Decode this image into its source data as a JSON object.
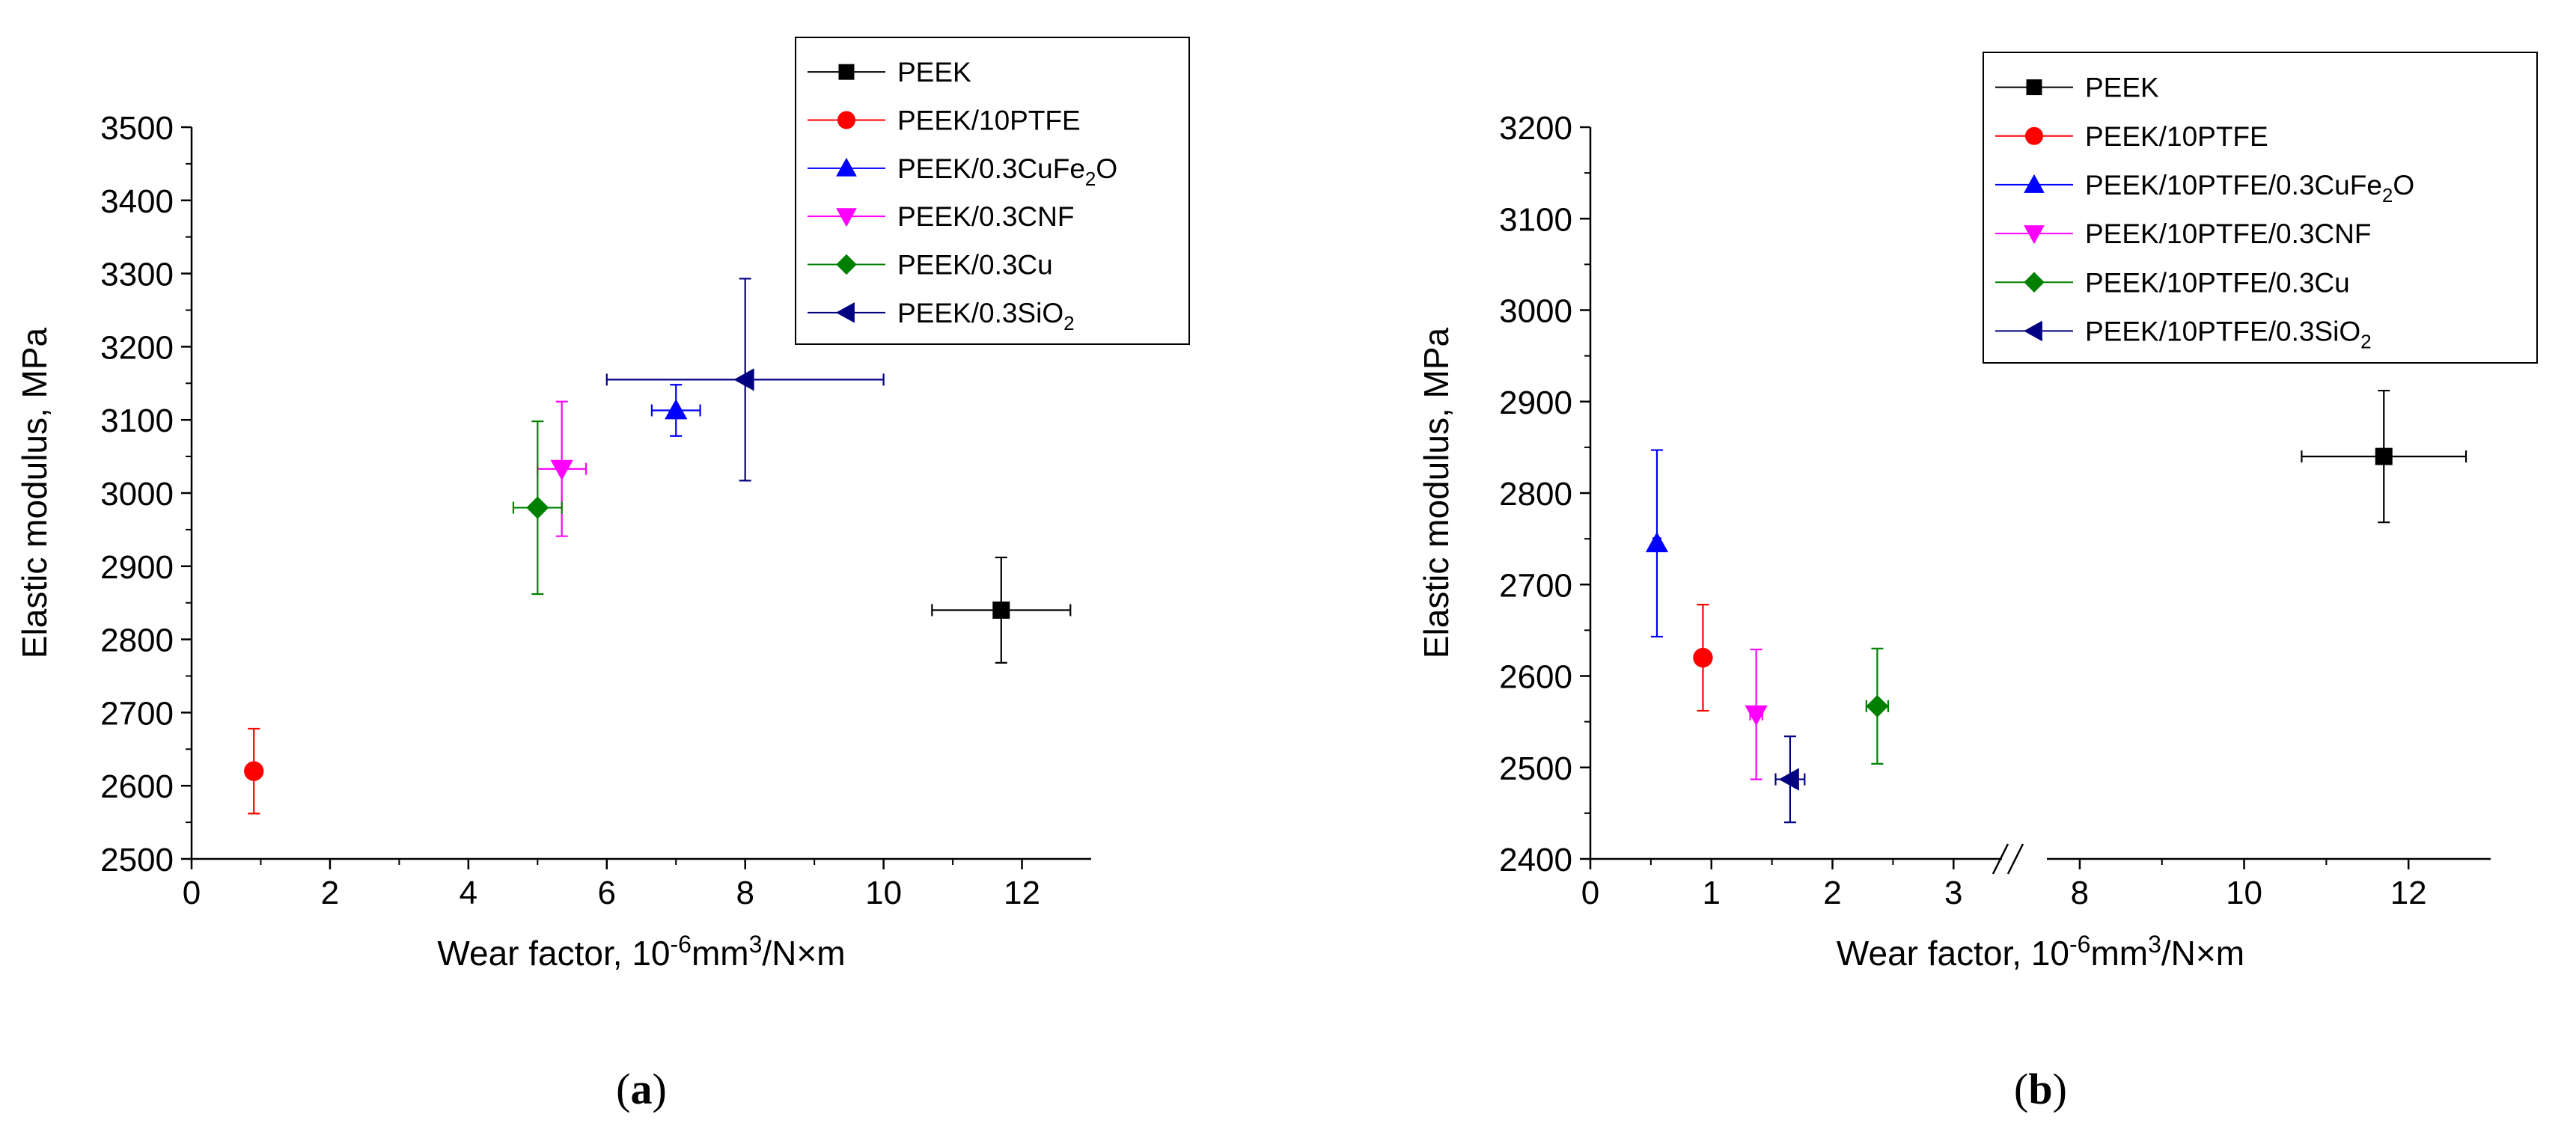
{
  "chart_data": [
    {
      "type": "scatter",
      "panel": "(a)",
      "panel_parts": [
        "(",
        "a",
        ")"
      ],
      "xlabel_parts": [
        "Wear factor, 10",
        "-6",
        "mm",
        "3",
        "/N×m"
      ],
      "ylabel": "Elastic modulus, MPa",
      "xlim": [
        0,
        13
      ],
      "ylim": [
        2500,
        3500
      ],
      "xticks": [
        0,
        2,
        4,
        6,
        8,
        10,
        12
      ],
      "yticks": [
        2500,
        2600,
        2700,
        2800,
        2900,
        3000,
        3100,
        3200,
        3300,
        3400,
        3500
      ],
      "legend_position": "top-right",
      "series": [
        {
          "name": "PEEK",
          "name_parts": [
            "PEEK"
          ],
          "color": "#000000",
          "marker": "square",
          "x": 11.7,
          "y": 2840,
          "xerr": 1.0,
          "yerr": 72
        },
        {
          "name": "PEEK/10PTFE",
          "name_parts": [
            "PEEK/10PTFE"
          ],
          "color": "#ff0000",
          "marker": "circle",
          "x": 0.9,
          "y": 2620,
          "xerr": 0.0,
          "yerr": 58
        },
        {
          "name": "PEEK/0.3CuFe2O",
          "name_parts": [
            "PEEK/0.3CuFe",
            "2",
            "O"
          ],
          "color": "#0000ff",
          "marker": "triangle-up",
          "x": 7.0,
          "y": 3113,
          "xerr": 0.35,
          "yerr": 35
        },
        {
          "name": "PEEK/0.3CNF",
          "name_parts": [
            "PEEK/0.3CNF"
          ],
          "color": "#ff00ff",
          "marker": "triangle-down",
          "x": 5.35,
          "y": 3033,
          "xerr": 0.35,
          "yerr": 92
        },
        {
          "name": "PEEK/0.3Cu",
          "name_parts": [
            "PEEK/0.3Cu"
          ],
          "color": "#008000",
          "marker": "diamond",
          "x": 5.0,
          "y": 2980,
          "xerr": 0.35,
          "yerr": 118
        },
        {
          "name": "PEEK/0.3SiO2",
          "name_parts": [
            "PEEK/0.3SiO",
            "2",
            ""
          ],
          "color": "#000080",
          "marker": "triangle-left",
          "x": 8.0,
          "y": 3155,
          "xerr": 2.0,
          "yerr": 138
        }
      ]
    },
    {
      "type": "scatter",
      "panel": "(b)",
      "panel_parts": [
        "(",
        "b",
        ")"
      ],
      "xlabel_parts": [
        "Wear factor, 10",
        "-6",
        "mm",
        "3",
        "/N×m"
      ],
      "ylabel": "Elastic modulus, MPa",
      "x_axis_break": {
        "segment1_range": [
          0,
          3.4
        ],
        "segment2_range": [
          7.6,
          13
        ]
      },
      "xticks_seg1": [
        0,
        1,
        2,
        3
      ],
      "xticks_seg2": [
        8,
        10,
        12
      ],
      "ylim": [
        2400,
        3200
      ],
      "yticks": [
        2400,
        2500,
        2600,
        2700,
        2800,
        2900,
        3000,
        3100,
        3200
      ],
      "legend_position": "top-right",
      "series": [
        {
          "name": "PEEK",
          "name_parts": [
            "PEEK"
          ],
          "color": "#000000",
          "marker": "square",
          "x": 11.7,
          "y": 2840,
          "xerr": 1.0,
          "yerr": 72
        },
        {
          "name": "PEEK/10PTFE",
          "name_parts": [
            "PEEK/10PTFE"
          ],
          "color": "#ff0000",
          "marker": "circle",
          "x": 0.93,
          "y": 2620,
          "xerr": 0.05,
          "yerr": 58
        },
        {
          "name": "PEEK/10PTFE/0.3CuFe2O",
          "name_parts": [
            "PEEK/10PTFE/0.3CuFe",
            "2",
            "O"
          ],
          "color": "#0000ff",
          "marker": "triangle-up",
          "x": 0.55,
          "y": 2745,
          "xerr": 0.03,
          "yerr": 102
        },
        {
          "name": "PEEK/10PTFE/0.3CNF",
          "name_parts": [
            "PEEK/10PTFE/0.3CNF"
          ],
          "color": "#ff00ff",
          "marker": "triangle-down",
          "x": 1.37,
          "y": 2558,
          "xerr": 0.05,
          "yerr": 71
        },
        {
          "name": "PEEK/10PTFE/0.3Cu",
          "name_parts": [
            "PEEK/10PTFE/0.3Cu"
          ],
          "color": "#008000",
          "marker": "diamond",
          "x": 2.37,
          "y": 2567,
          "xerr": 0.09,
          "yerr": 63
        },
        {
          "name": "PEEK/10PTFE/0.3SiO2",
          "name_parts": [
            "PEEK/10PTFE/0.3SiO",
            "2",
            ""
          ],
          "color": "#000080",
          "marker": "triangle-left",
          "x": 1.65,
          "y": 2487,
          "xerr": 0.12,
          "yerr": 47
        }
      ]
    }
  ]
}
